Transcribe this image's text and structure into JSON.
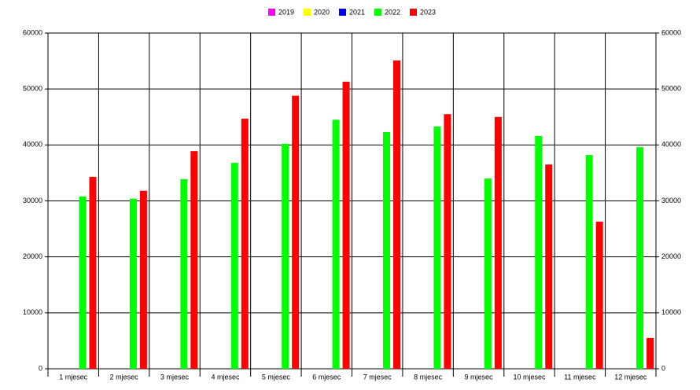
{
  "chart_data": {
    "type": "bar",
    "categories": [
      "1 mjesec",
      "2 mjesec",
      "3 mjesec",
      "4 mjesec",
      "5 mjesec",
      "6 mjesec",
      "7 mjesec",
      "8 mjesec",
      "9 mjesec",
      "10 mjesec",
      "11 mjesec",
      "12 mjesec"
    ],
    "series": [
      {
        "name": "2019",
        "color": "#ff00ff",
        "values": [
          null,
          null,
          null,
          null,
          null,
          null,
          null,
          null,
          null,
          null,
          null,
          null
        ]
      },
      {
        "name": "2020",
        "color": "#ffff00",
        "values": [
          null,
          null,
          null,
          null,
          null,
          null,
          null,
          null,
          null,
          null,
          null,
          null
        ]
      },
      {
        "name": "2021",
        "color": "#0000ff",
        "values": [
          null,
          null,
          null,
          null,
          null,
          null,
          null,
          null,
          null,
          null,
          null,
          null
        ]
      },
      {
        "name": "2022",
        "color": "#00ff00",
        "values": [
          30800,
          30400,
          33900,
          36800,
          40200,
          44500,
          42300,
          43300,
          34000,
          41600,
          38200,
          39600
        ]
      },
      {
        "name": "2023",
        "color": "#ff0000",
        "values": [
          34300,
          31800,
          38900,
          44700,
          48800,
          51300,
          55100,
          45500,
          45000,
          36500,
          26300,
          5500
        ]
      }
    ],
    "ylim": [
      0,
      60000
    ],
    "yticks": [
      0,
      10000,
      20000,
      30000,
      40000,
      50000,
      60000
    ],
    "grid": true,
    "legend": "top"
  }
}
